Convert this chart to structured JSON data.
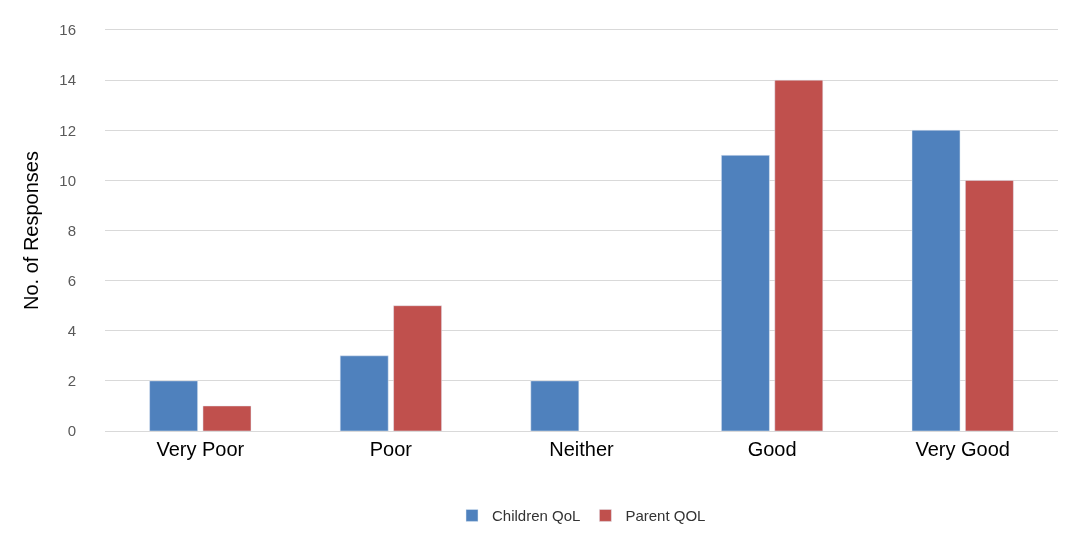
{
  "chart_data": {
    "type": "bar",
    "ylabel": "No. of Responses",
    "categories": [
      "Very Poor",
      "Poor",
      "Neither",
      "Good",
      "Very Good"
    ],
    "series": [
      {
        "name": "Children QoL",
        "color": "#4f81bd",
        "values": [
          2,
          3,
          2,
          11,
          12
        ]
      },
      {
        "name": "Parent QOL",
        "color": "#c0504d",
        "values": [
          1,
          5,
          null,
          14,
          10
        ]
      }
    ],
    "ylim": [
      0,
      16
    ],
    "yticks": [
      0,
      2,
      4,
      6,
      8,
      10,
      12,
      14,
      16
    ],
    "grid": "y",
    "legend": "bottom"
  }
}
